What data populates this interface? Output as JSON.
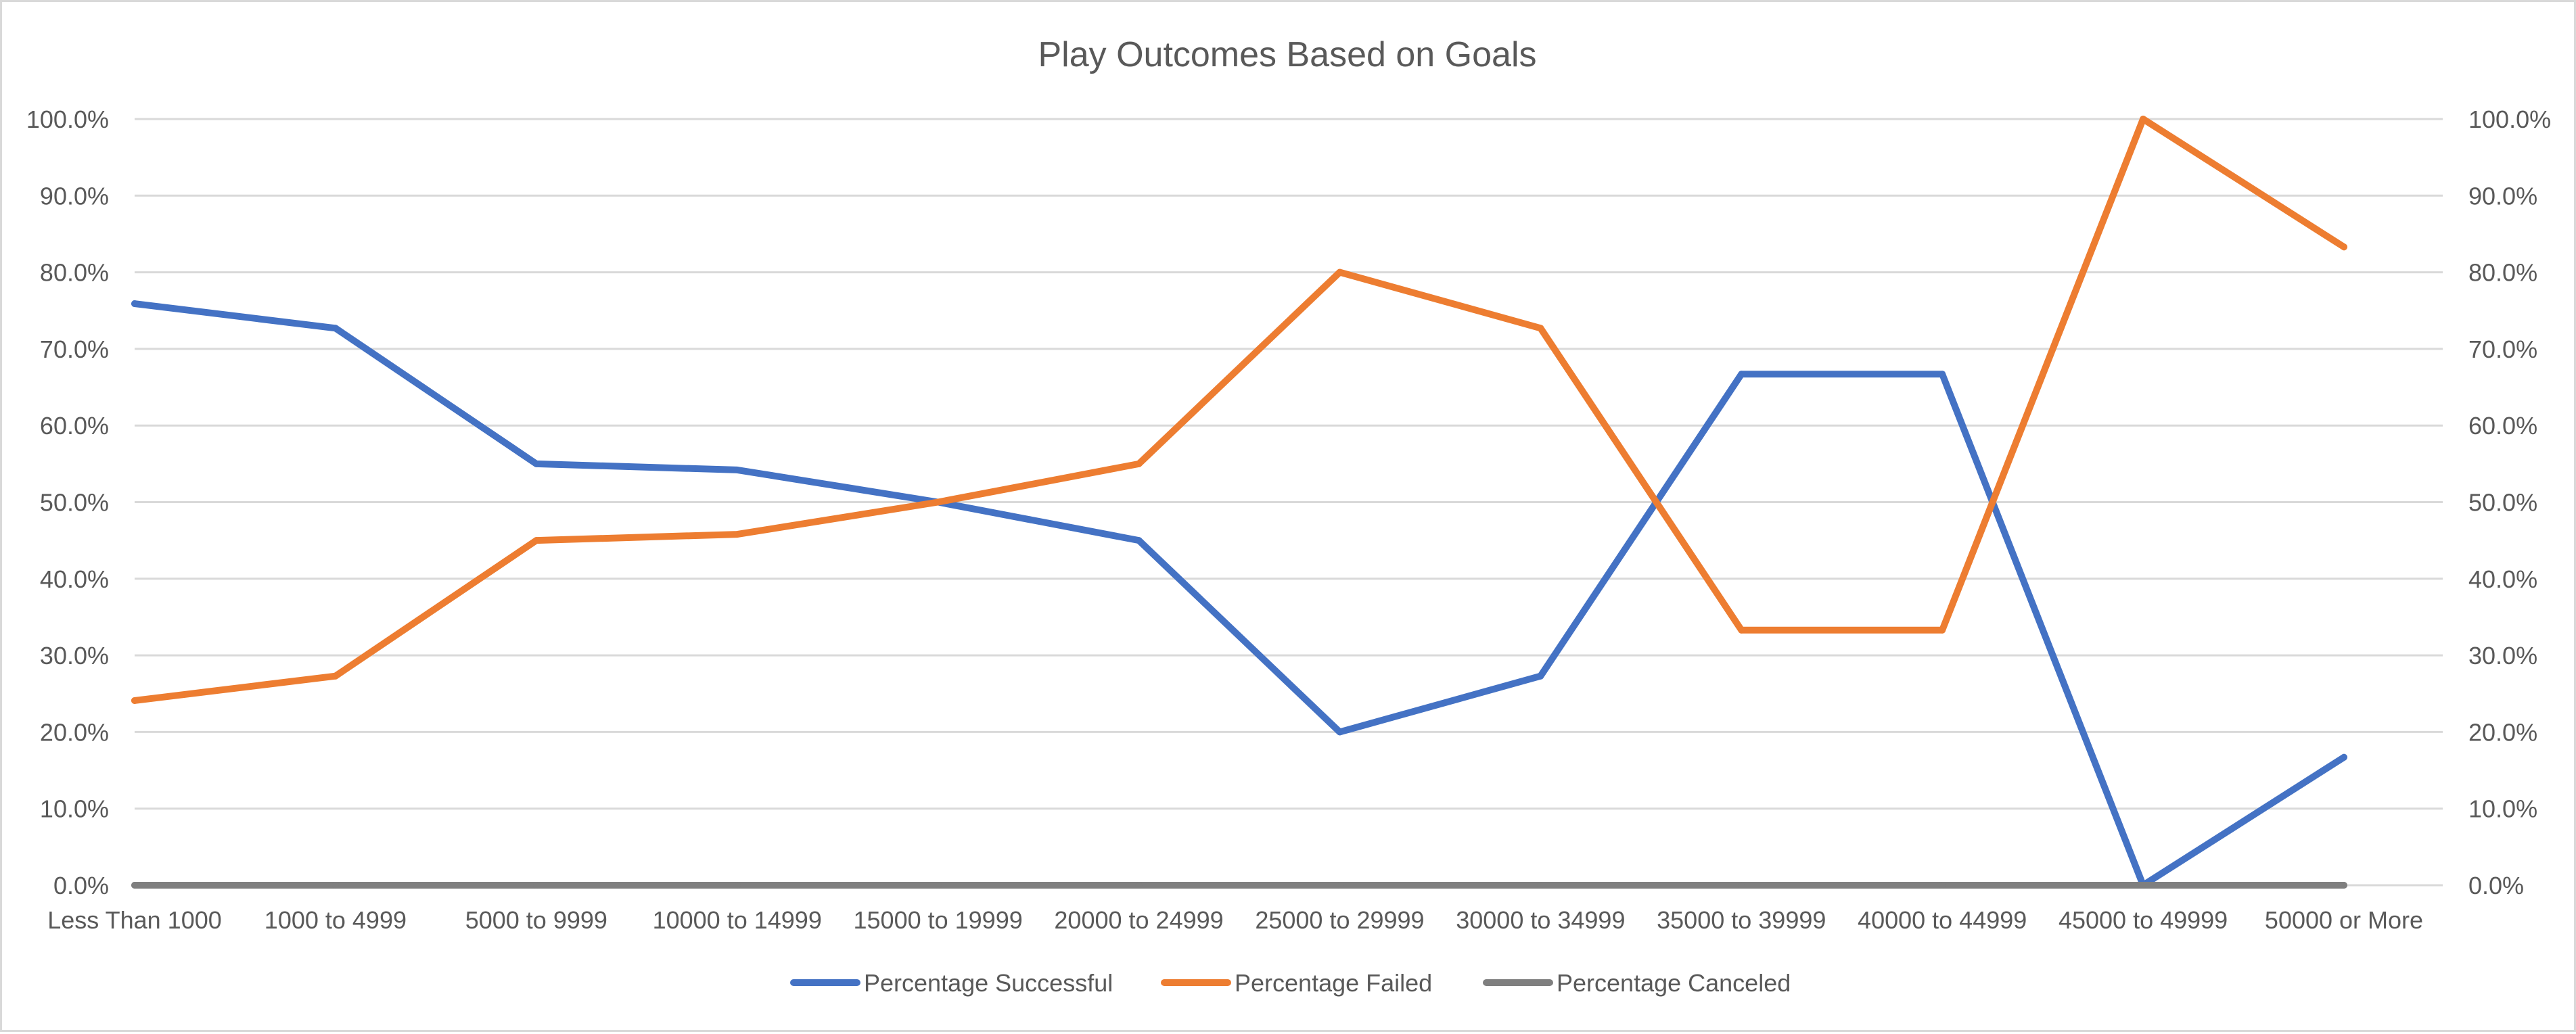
{
  "chart_data": {
    "type": "line",
    "title": "Play Outcomes Based on Goals",
    "xlabel": "",
    "ylabel": "",
    "categories": [
      "Less Than 1000",
      "1000 to 4999",
      "5000 to 9999",
      "10000 to 14999",
      "15000 to 19999",
      "20000 to 24999",
      "25000 to 29999",
      "30000 to 34999",
      "35000 to 39999",
      "40000 to 44999",
      "45000 to 49999",
      "50000 or More"
    ],
    "y_ticks": [
      "0.0%",
      "10.0%",
      "20.0%",
      "30.0%",
      "40.0%",
      "50.0%",
      "60.0%",
      "70.0%",
      "80.0%",
      "90.0%",
      "100.0%"
    ],
    "y2_ticks": [
      "0.0%",
      "10.0%",
      "20.0%",
      "30.0%",
      "40.0%",
      "50.0%",
      "60.0%",
      "70.0%",
      "80.0%",
      "90.0%",
      "100.0%"
    ],
    "ylim": [
      0,
      100
    ],
    "grid": true,
    "legend_position": "bottom",
    "series": [
      {
        "name": "Percentage Successful",
        "color": "#4472c4",
        "values": [
          75.9,
          72.7,
          55.0,
          54.2,
          50.0,
          45.0,
          20.0,
          27.3,
          66.7,
          66.7,
          0.0,
          16.7
        ]
      },
      {
        "name": "Percentage Failed",
        "color": "#ed7d31",
        "values": [
          24.1,
          27.3,
          45.0,
          45.8,
          50.0,
          55.0,
          80.0,
          72.7,
          33.3,
          33.3,
          100.0,
          83.3
        ]
      },
      {
        "name": "Percentage Canceled",
        "color": "#7f7f7f",
        "values": [
          0,
          0,
          0,
          0,
          0,
          0,
          0,
          0,
          0,
          0,
          0,
          0
        ]
      }
    ]
  }
}
